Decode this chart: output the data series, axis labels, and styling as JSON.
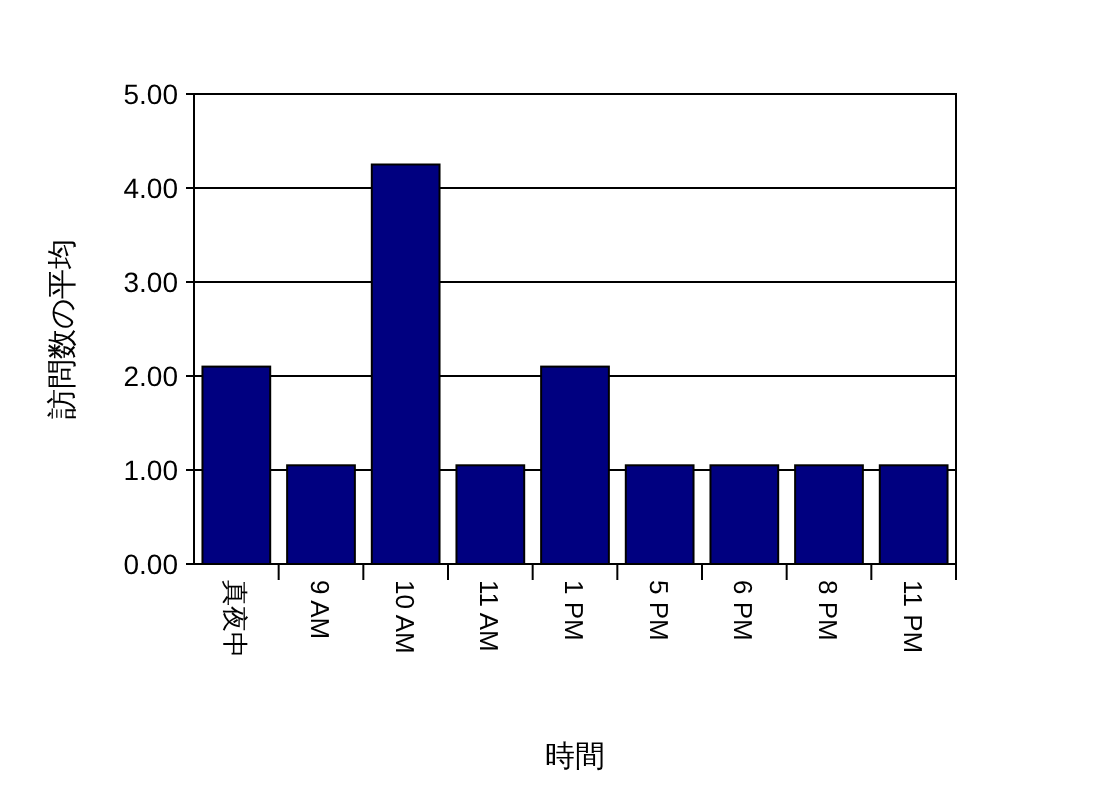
{
  "chart_data": {
    "type": "bar",
    "xlabel": "時間",
    "ylabel": "訪問数の平均",
    "categories": [
      "真夜中",
      "9 AM",
      "10 AM",
      "11 AM",
      "1 PM",
      "5 PM",
      "6 PM",
      "8 PM",
      "11 PM"
    ],
    "values": [
      2.1,
      1.05,
      4.25,
      1.05,
      2.1,
      1.05,
      1.05,
      1.05,
      1.05
    ],
    "color": "#000080",
    "ylim": [
      0,
      5
    ],
    "yticks": [
      {
        "value": 0,
        "label": "0.00"
      },
      {
        "value": 1,
        "label": "1.00"
      },
      {
        "value": 2,
        "label": "2.00"
      },
      {
        "value": 3,
        "label": "3.00"
      },
      {
        "value": 4,
        "label": "4.00"
      },
      {
        "value": 5,
        "label": "5.00"
      }
    ],
    "grid": "y"
  }
}
